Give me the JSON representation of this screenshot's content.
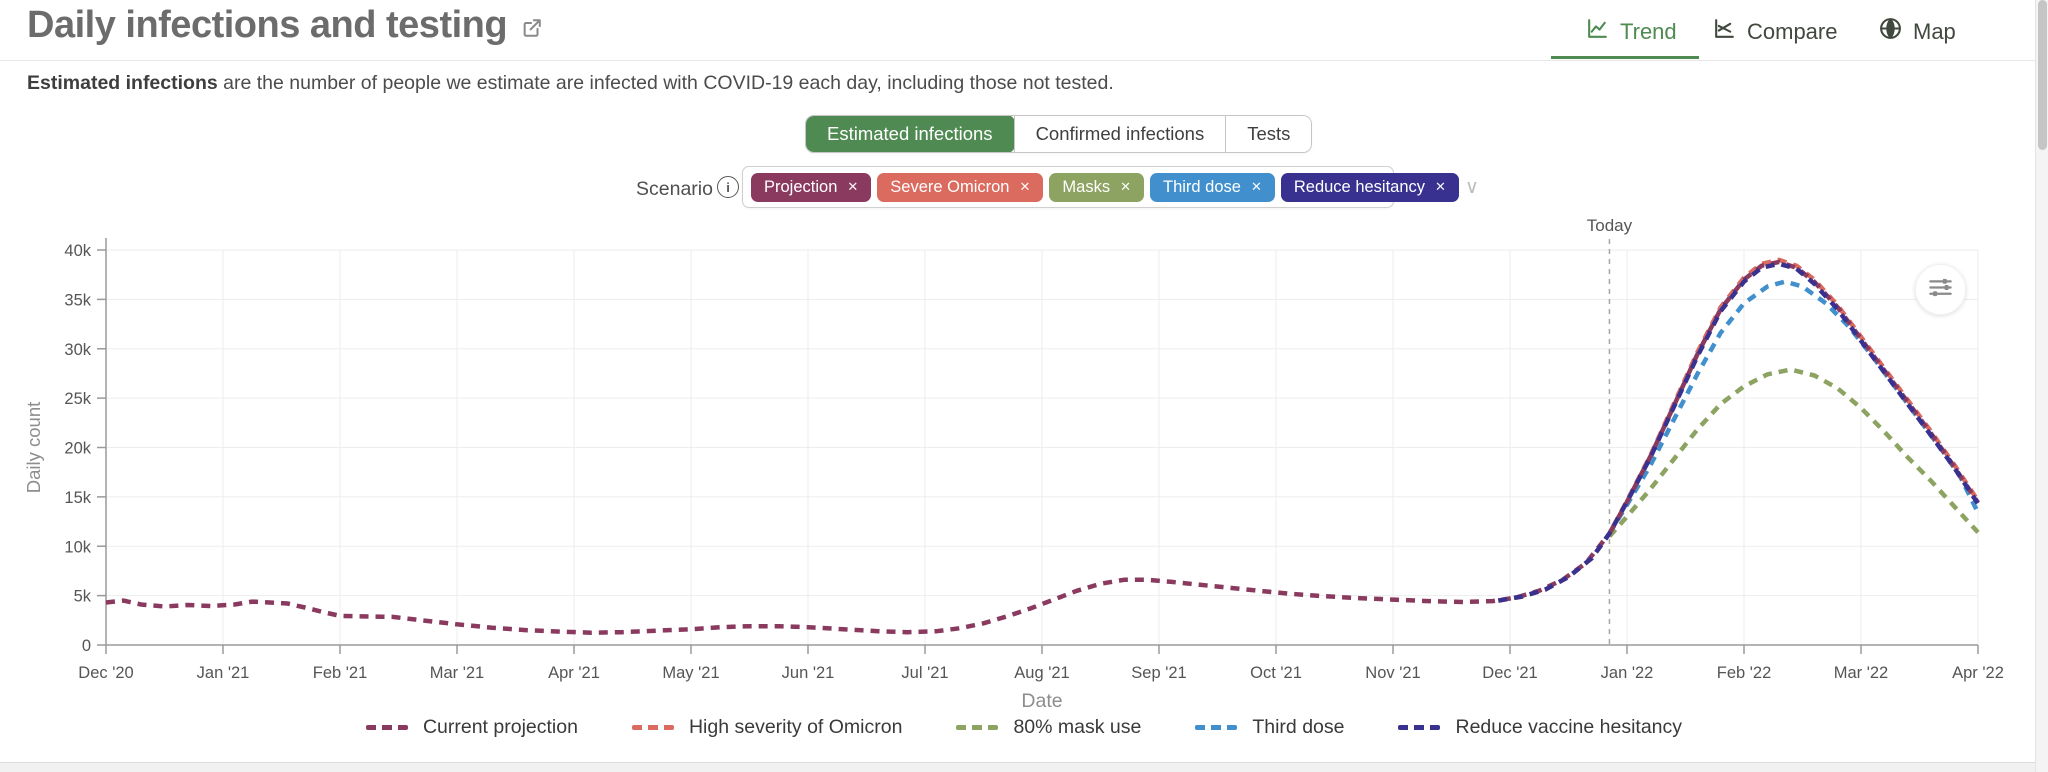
{
  "header": {
    "title": "Daily infections and testing",
    "nav": [
      {
        "label": "Trend",
        "icon": "line-chart-icon",
        "active": true
      },
      {
        "label": "Compare",
        "icon": "compare-chart-icon",
        "active": false
      },
      {
        "label": "Map",
        "icon": "globe-icon",
        "active": false
      }
    ]
  },
  "subtitle": {
    "lead": "Estimated infections",
    "rest": " are the number of people we estimate are infected with COVID-19 each day, including those not tested."
  },
  "metric_tabs": [
    {
      "label": "Estimated infections",
      "active": true
    },
    {
      "label": "Confirmed infections",
      "active": false
    },
    {
      "label": "Tests",
      "active": false
    }
  ],
  "scenario": {
    "label": "Scenario",
    "chips": [
      {
        "label": "Projection",
        "color": "#8a3a5f"
      },
      {
        "label": "Severe Omicron",
        "color": "#db6a5f"
      },
      {
        "label": "Masks",
        "color": "#8ca361"
      },
      {
        "label": "Third dose",
        "color": "#4190cd"
      },
      {
        "label": "Reduce hesitancy",
        "color": "#38318f"
      }
    ],
    "close_glyph": "✕",
    "caret_glyph": "∨"
  },
  "colors": {
    "accent_green": "#4e8a51",
    "axis": "#9a9a9a",
    "grid": "#ededed",
    "tick_text": "#555555",
    "muted_text": "#8d8d8d"
  },
  "chart_data": {
    "type": "line",
    "xlabel": "Date",
    "ylabel": "Daily count",
    "y_unit": "k",
    "ylim_k": [
      0,
      40
    ],
    "y_ticks": [
      "0",
      "5k",
      "10k",
      "15k",
      "20k",
      "25k",
      "30k",
      "35k",
      "40k"
    ],
    "x_range_months": [
      0,
      16
    ],
    "x_ticks": [
      "Dec '20",
      "Jan '21",
      "Feb '21",
      "Mar '21",
      "Apr '21",
      "May '21",
      "Jun '21",
      "Jul '21",
      "Aug '21",
      "Sep '21",
      "Oct '21",
      "Nov '21",
      "Dec '21",
      "Jan '22",
      "Feb '22",
      "Mar '22",
      "Apr '22"
    ],
    "grid": true,
    "today": {
      "x_month": 12.85,
      "label": "Today"
    },
    "line_style": "dashed",
    "series": [
      {
        "name": "Current projection (observed)",
        "color": "#8a3a5f",
        "points": [
          [
            0,
            4.3
          ],
          [
            0.15,
            4.5
          ],
          [
            0.3,
            4.1
          ],
          [
            0.5,
            3.9
          ],
          [
            0.7,
            4.05
          ],
          [
            0.9,
            3.95
          ],
          [
            1.1,
            4.1
          ],
          [
            1.25,
            4.4
          ],
          [
            1.4,
            4.3
          ],
          [
            1.55,
            4.2
          ],
          [
            1.7,
            3.8
          ],
          [
            1.85,
            3.35
          ],
          [
            2.0,
            2.95
          ],
          [
            2.2,
            2.9
          ],
          [
            2.45,
            2.85
          ],
          [
            2.7,
            2.5
          ],
          [
            3.0,
            2.1
          ],
          [
            3.3,
            1.75
          ],
          [
            3.6,
            1.5
          ],
          [
            3.9,
            1.35
          ],
          [
            4.15,
            1.25
          ],
          [
            4.4,
            1.3
          ],
          [
            4.7,
            1.45
          ],
          [
            5.0,
            1.6
          ],
          [
            5.25,
            1.8
          ],
          [
            5.5,
            1.9
          ],
          [
            5.75,
            1.9
          ],
          [
            6.0,
            1.8
          ],
          [
            6.3,
            1.6
          ],
          [
            6.6,
            1.4
          ],
          [
            6.85,
            1.3
          ],
          [
            7.1,
            1.4
          ],
          [
            7.3,
            1.7
          ],
          [
            7.5,
            2.2
          ],
          [
            7.7,
            2.9
          ],
          [
            7.9,
            3.7
          ],
          [
            8.1,
            4.6
          ],
          [
            8.3,
            5.5
          ],
          [
            8.5,
            6.2
          ],
          [
            8.7,
            6.6
          ],
          [
            8.9,
            6.6
          ],
          [
            9.1,
            6.4
          ],
          [
            9.35,
            6.1
          ],
          [
            9.6,
            5.8
          ],
          [
            9.85,
            5.5
          ],
          [
            10.1,
            5.2
          ],
          [
            10.4,
            4.95
          ],
          [
            10.7,
            4.75
          ],
          [
            11.0,
            4.6
          ],
          [
            11.3,
            4.45
          ],
          [
            11.6,
            4.35
          ],
          [
            11.85,
            4.45
          ],
          [
            12.05,
            4.8
          ],
          [
            12.25,
            5.5
          ],
          [
            12.45,
            6.6
          ],
          [
            12.65,
            8.3
          ],
          [
            12.85,
            11.3
          ]
        ]
      },
      {
        "name": "80% mask use",
        "color": "#8ca361",
        "points": [
          [
            12.85,
            11.0
          ],
          [
            13.0,
            13.0
          ],
          [
            13.2,
            15.8
          ],
          [
            13.4,
            18.8
          ],
          [
            13.6,
            21.8
          ],
          [
            13.8,
            24.4
          ],
          [
            14.0,
            26.2
          ],
          [
            14.2,
            27.4
          ],
          [
            14.4,
            27.9
          ],
          [
            14.6,
            27.3
          ],
          [
            14.8,
            26.0
          ],
          [
            15.0,
            24.0
          ],
          [
            15.2,
            21.6
          ],
          [
            15.4,
            19.0
          ],
          [
            15.6,
            16.6
          ],
          [
            15.8,
            14.0
          ],
          [
            16.0,
            11.4
          ]
        ]
      },
      {
        "name": "Third dose",
        "color": "#4190cd",
        "points": [
          [
            12.85,
            11.3
          ],
          [
            13.0,
            14.2
          ],
          [
            13.2,
            18.2
          ],
          [
            13.4,
            22.8
          ],
          [
            13.6,
            27.4
          ],
          [
            13.8,
            31.6
          ],
          [
            14.0,
            34.6
          ],
          [
            14.2,
            36.3
          ],
          [
            14.35,
            36.8
          ],
          [
            14.5,
            36.3
          ],
          [
            14.7,
            34.6
          ],
          [
            14.9,
            32.2
          ],
          [
            15.1,
            29.2
          ],
          [
            15.3,
            26.0
          ],
          [
            15.5,
            22.8
          ],
          [
            15.7,
            19.6
          ],
          [
            15.85,
            17.0
          ],
          [
            16.0,
            13.4
          ]
        ]
      },
      {
        "name": "High severity of Omicron",
        "color": "#db6a5f",
        "points": [
          [
            11.9,
            4.5
          ],
          [
            12.1,
            4.9
          ],
          [
            12.3,
            5.6
          ],
          [
            12.5,
            6.9
          ],
          [
            12.7,
            8.8
          ],
          [
            12.85,
            11.3
          ],
          [
            13.0,
            14.6
          ],
          [
            13.2,
            19.2
          ],
          [
            13.4,
            24.4
          ],
          [
            13.6,
            29.6
          ],
          [
            13.8,
            34.2
          ],
          [
            14.0,
            37.2
          ],
          [
            14.15,
            38.6
          ],
          [
            14.3,
            39.0
          ],
          [
            14.45,
            38.4
          ],
          [
            14.6,
            37.0
          ],
          [
            14.8,
            34.4
          ],
          [
            15.0,
            31.2
          ],
          [
            15.2,
            28.0
          ],
          [
            15.4,
            24.8
          ],
          [
            15.6,
            21.6
          ],
          [
            15.8,
            18.2
          ],
          [
            16.0,
            14.6
          ]
        ]
      },
      {
        "name": "Current projection",
        "color": "#8a3a5f",
        "points": [
          [
            12.85,
            11.3
          ],
          [
            13.0,
            14.5
          ],
          [
            13.2,
            19.1
          ],
          [
            13.4,
            24.2
          ],
          [
            13.6,
            29.4
          ],
          [
            13.8,
            34.0
          ],
          [
            14.0,
            37.0
          ],
          [
            14.15,
            38.4
          ],
          [
            14.3,
            38.8
          ],
          [
            14.45,
            38.2
          ],
          [
            14.6,
            36.8
          ],
          [
            14.8,
            34.2
          ],
          [
            15.0,
            31.0
          ],
          [
            15.2,
            27.8
          ],
          [
            15.4,
            24.6
          ],
          [
            15.6,
            21.4
          ],
          [
            15.8,
            18.0
          ],
          [
            16.0,
            14.4
          ]
        ]
      },
      {
        "name": "Reduce vaccine hesitancy",
        "color": "#38318f",
        "points": [
          [
            11.9,
            4.5
          ],
          [
            12.1,
            4.9
          ],
          [
            12.3,
            5.6
          ],
          [
            12.5,
            6.9
          ],
          [
            12.7,
            8.8
          ],
          [
            12.85,
            11.3
          ],
          [
            13.0,
            14.5
          ],
          [
            13.2,
            19.0
          ],
          [
            13.4,
            24.1
          ],
          [
            13.6,
            29.2
          ],
          [
            13.8,
            33.8
          ],
          [
            14.0,
            36.8
          ],
          [
            14.15,
            38.2
          ],
          [
            14.3,
            38.6
          ],
          [
            14.45,
            38.1
          ],
          [
            14.6,
            36.6
          ],
          [
            14.8,
            34.0
          ],
          [
            15.0,
            30.8
          ],
          [
            15.2,
            27.6
          ],
          [
            15.4,
            24.4
          ],
          [
            15.6,
            21.2
          ],
          [
            15.8,
            17.9
          ],
          [
            16.0,
            14.3
          ]
        ]
      }
    ]
  },
  "legend": {
    "items": [
      {
        "label": "Current projection",
        "color": "#8a3a5f"
      },
      {
        "label": "High severity of Omicron",
        "color": "#db6a5f"
      },
      {
        "label": "80% mask use",
        "color": "#8ca361"
      },
      {
        "label": "Third dose",
        "color": "#4190cd"
      },
      {
        "label": "Reduce vaccine hesitancy",
        "color": "#38318f"
      }
    ]
  }
}
